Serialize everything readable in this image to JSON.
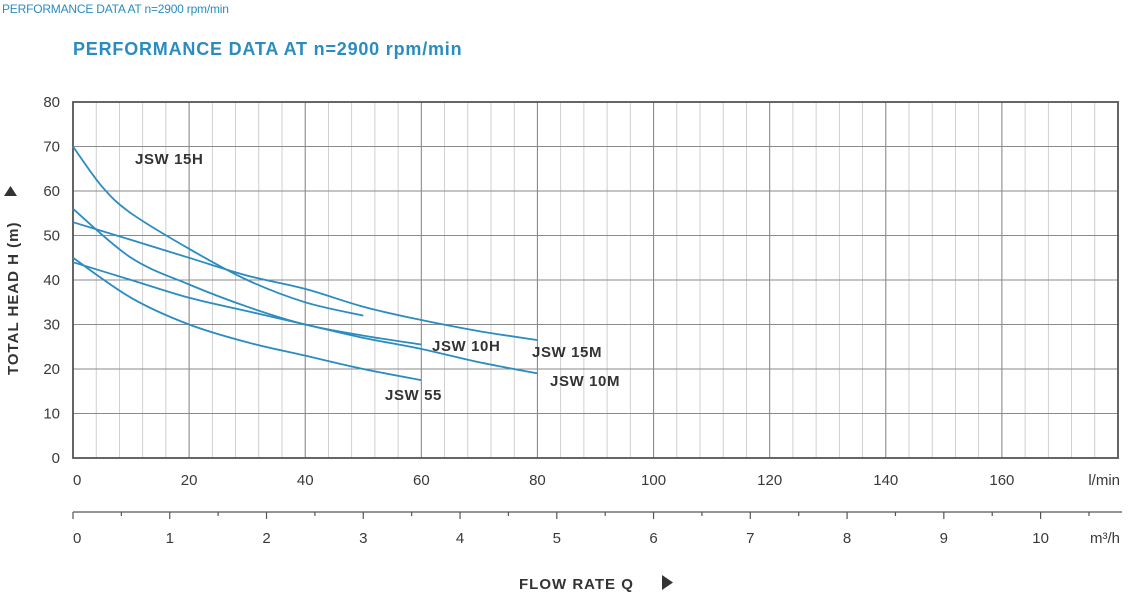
{
  "header": {
    "caption": "PERFORMANCE DATA AT n=2900 rpm/min",
    "title": "PERFORMANCE DATA AT n=2900 rpm/min"
  },
  "chart_data": {
    "type": "line",
    "title": "PERFORMANCE DATA AT n=2900 rpm/min",
    "ylabel": "TOTAL HEAD H (m)",
    "xlabel": "FLOW RATE Q",
    "ylim": [
      0,
      80
    ],
    "xlim": [
      0,
      180
    ],
    "grid": true,
    "y_ticks": [
      0,
      10,
      20,
      30,
      40,
      50,
      60,
      70,
      80
    ],
    "x_ticks_lmin": [
      0,
      20,
      40,
      60,
      80,
      100,
      120,
      140,
      160
    ],
    "x_unit_lmin": "l/min",
    "x_ticks_m3h": [
      0,
      1,
      2,
      3,
      4,
      5,
      6,
      7,
      8,
      9,
      10
    ],
    "x_unit_m3h": "m³/h",
    "line_color": "#2a8cc0",
    "series": [
      {
        "name": "JSW 15H",
        "x": [
          0,
          5,
          10,
          20,
          30,
          40,
          50
        ],
        "y": [
          70,
          61,
          55,
          47,
          40,
          35,
          32
        ]
      },
      {
        "name": "JSW 15M",
        "x": [
          0,
          10,
          20,
          30,
          40,
          50,
          60,
          70,
          80
        ],
        "y": [
          53,
          49,
          45,
          41,
          38,
          34,
          31,
          28.5,
          26.5
        ]
      },
      {
        "name": "JSW 10H",
        "x": [
          0,
          10,
          20,
          30,
          40,
          50,
          60
        ],
        "y": [
          56,
          45,
          39,
          34,
          30,
          27.5,
          25.5
        ]
      },
      {
        "name": "JSW 10M",
        "x": [
          0,
          10,
          20,
          30,
          40,
          50,
          60,
          70,
          80
        ],
        "y": [
          44,
          40,
          36,
          33,
          30,
          27,
          24.5,
          21.5,
          19
        ]
      },
      {
        "name": "JSW 55",
        "x": [
          0,
          10,
          20,
          30,
          40,
          50,
          60
        ],
        "y": [
          45,
          36,
          30,
          26,
          23,
          20,
          17.5
        ]
      }
    ]
  }
}
